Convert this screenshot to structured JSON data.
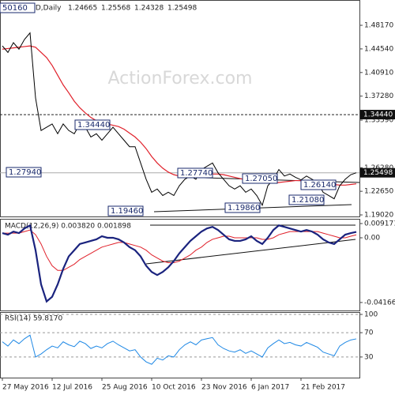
{
  "header": {
    "symbol": "GBPUSD,Daily",
    "open": "1.24665",
    "high": "1.25568",
    "low": "1.24328",
    "close": "1.25498"
  },
  "watermark": "ActionForex.com",
  "chart_data": [
    {
      "type": "price",
      "categories": [
        "27 May 2016",
        null,
        null,
        null,
        null,
        null,
        null,
        null,
        null,
        "12 Jul 2016",
        null,
        null,
        null,
        null,
        null,
        null,
        null,
        null,
        "25 Aug 2016",
        null,
        null,
        null,
        null,
        null,
        null,
        null,
        null,
        "10 Oct 2016",
        null,
        null,
        null,
        null,
        null,
        null,
        null,
        null,
        "23 Nov 2016",
        null,
        null,
        null,
        null,
        null,
        null,
        null,
        null,
        "6 Jan 2017",
        null,
        null,
        null,
        null,
        null,
        null,
        null,
        null,
        "21 Feb 2017",
        null,
        null,
        null,
        null,
        null,
        null,
        null,
        null,
        null,
        null
      ],
      "series": [
        {
          "name": "Close",
          "color": "#000000",
          "values": [
            1.45,
            1.44,
            1.455,
            1.445,
            1.46,
            1.47,
            1.37,
            1.32,
            1.325,
            1.33,
            1.315,
            1.33,
            1.32,
            1.315,
            1.33,
            1.325,
            1.31,
            1.315,
            1.305,
            1.315,
            1.325,
            1.315,
            1.305,
            1.295,
            1.295,
            1.27,
            1.245,
            1.225,
            1.23,
            1.22,
            1.225,
            1.22,
            1.235,
            1.245,
            1.25,
            1.245,
            1.26,
            1.265,
            1.27,
            1.255,
            1.245,
            1.235,
            1.23,
            1.235,
            1.225,
            1.23,
            1.22,
            1.205,
            1.235,
            1.245,
            1.26,
            1.25,
            1.253,
            1.248,
            1.244,
            1.25,
            1.245,
            1.24,
            1.225,
            1.22,
            1.215,
            1.235,
            1.245,
            1.252,
            1.255
          ]
        },
        {
          "name": "MA",
          "color": "#e0202a",
          "values": [
            1.445,
            1.446,
            1.447,
            1.448,
            1.449,
            1.45,
            1.448,
            1.44,
            1.432,
            1.42,
            1.405,
            1.39,
            1.378,
            1.365,
            1.355,
            1.347,
            1.34,
            1.335,
            1.332,
            1.33,
            1.328,
            1.326,
            1.322,
            1.316,
            1.31,
            1.302,
            1.292,
            1.28,
            1.27,
            1.262,
            1.256,
            1.252,
            1.25,
            1.249,
            1.249,
            1.25,
            1.251,
            1.252,
            1.253,
            1.253,
            1.252,
            1.25,
            1.248,
            1.246,
            1.244,
            1.243,
            1.242,
            1.24,
            1.239,
            1.239,
            1.24,
            1.241,
            1.242,
            1.243,
            1.243,
            1.243,
            1.243,
            1.242,
            1.241,
            1.239,
            1.237,
            1.236,
            1.236,
            1.237,
            1.238
          ]
        }
      ],
      "ylim": [
        1.1878,
        1.5206
      ],
      "yticks": [
        {
          "value": 1.4817,
          "label": "1.48170"
        },
        {
          "value": 1.4454,
          "label": "1.44540"
        },
        {
          "value": 1.4091,
          "label": "1.40910"
        },
        {
          "value": 1.3728,
          "label": "1.37280"
        },
        {
          "value": 1.3359,
          "label": "1.33590"
        },
        {
          "value": 1.2628,
          "label": "1.26280"
        },
        {
          "value": 1.2265,
          "label": "1.22650"
        },
        {
          "value": 1.1902,
          "label": "1.19020"
        }
      ],
      "level": {
        "value": 1.3444,
        "label": "1.34440"
      },
      "last": {
        "value": 1.25498,
        "label": "1.25498"
      },
      "annotations": [
        "50160",
        "1.34440",
        "1.27940",
        "1.27740",
        "1.27050",
        "1.26140",
        "1.21080",
        "1.19460",
        "1.19860"
      ]
    },
    {
      "type": "macd",
      "title": "MACD(12,26,9) 0.003820 0.001898",
      "series": [
        {
          "name": "MACD",
          "color": "#1a237e",
          "values": [
            0.003,
            0.002,
            0.004,
            0.003,
            0.006,
            0.008,
            -0.008,
            -0.03,
            -0.041,
            -0.038,
            -0.03,
            -0.02,
            -0.012,
            -0.008,
            -0.004,
            -0.003,
            -0.002,
            -0.001,
            0.001,
            0,
            0,
            -0.001,
            -0.003,
            -0.006,
            -0.008,
            -0.012,
            -0.018,
            -0.022,
            -0.024,
            -0.022,
            -0.019,
            -0.015,
            -0.01,
            -0.006,
            -0.002,
            0.001,
            0.004,
            0.006,
            0.007,
            0.005,
            0.002,
            -0.001,
            -0.002,
            -0.002,
            -0.001,
            0.001,
            -0.002,
            -0.004,
            0,
            0.005,
            0.008,
            0.007,
            0.006,
            0.005,
            0.004,
            0.005,
            0.004,
            0.002,
            -0.001,
            -0.003,
            -0.004,
            -0.001,
            0.002,
            0.003,
            0.0038
          ]
        },
        {
          "name": "Signal",
          "color": "#e0202a",
          "values": [
            0.003,
            0.003,
            0.003,
            0.003,
            0.004,
            0.005,
            0.002,
            -0.004,
            -0.012,
            -0.018,
            -0.021,
            -0.021,
            -0.019,
            -0.017,
            -0.014,
            -0.012,
            -0.01,
            -0.008,
            -0.006,
            -0.005,
            -0.004,
            -0.003,
            -0.003,
            -0.004,
            -0.005,
            -0.006,
            -0.008,
            -0.011,
            -0.013,
            -0.015,
            -0.016,
            -0.016,
            -0.015,
            -0.013,
            -0.011,
            -0.008,
            -0.006,
            -0.003,
            -0.001,
            0,
            0.001,
            0.001,
            0,
            0,
            0,
            0,
            0,
            -0.001,
            -0.001,
            0,
            0.002,
            0.003,
            0.004,
            0.004,
            0.004,
            0.004,
            0.004,
            0.004,
            0.003,
            0.002,
            0.001,
            0,
            0,
            0.001,
            0.0019
          ]
        }
      ],
      "ylim": [
        -0.0468,
        0.0122
      ],
      "yticks": [
        0.009171,
        {
          "value": 0,
          "label": "0.00"
        },
        -0.041663
      ]
    },
    {
      "type": "rsi",
      "title": "RSI(14) 59.8170",
      "series": [
        {
          "name": "RSI",
          "color": "#1e88e5",
          "values": [
            55,
            48,
            58,
            52,
            60,
            66,
            30,
            35,
            42,
            48,
            45,
            55,
            50,
            47,
            56,
            52,
            44,
            48,
            45,
            52,
            56,
            50,
            45,
            40,
            42,
            30,
            22,
            18,
            28,
            25,
            32,
            30,
            42,
            50,
            55,
            50,
            58,
            60,
            62,
            50,
            44,
            40,
            38,
            42,
            36,
            40,
            35,
            30,
            45,
            52,
            58,
            52,
            54,
            50,
            48,
            54,
            50,
            46,
            38,
            35,
            32,
            48,
            54,
            58,
            59.817
          ]
        }
      ],
      "ylim": [
        0,
        100
      ],
      "yticks": [
        100,
        70,
        30
      ]
    }
  ]
}
